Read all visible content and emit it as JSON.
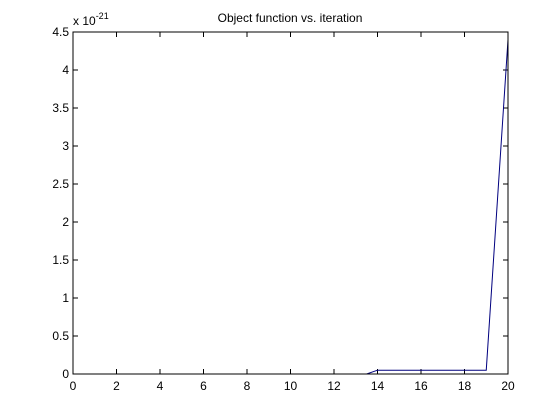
{
  "chart_data": {
    "type": "line",
    "title": "Object function vs. iteration",
    "xlabel": "",
    "ylabel": "",
    "y_exponent_base": "x 10",
    "y_exponent_power": "-21",
    "xlim": [
      0,
      20
    ],
    "ylim": [
      0,
      4.5
    ],
    "x_ticks": [
      0,
      2,
      4,
      6,
      8,
      10,
      12,
      14,
      16,
      18,
      20
    ],
    "x_tick_labels": [
      "0",
      "2",
      "4",
      "6",
      "8",
      "10",
      "12",
      "14",
      "16",
      "18",
      "20"
    ],
    "y_ticks": [
      0,
      0.5,
      1,
      1.5,
      2,
      2.5,
      3,
      3.5,
      4,
      4.5
    ],
    "y_tick_labels": [
      "0",
      "0.5",
      "1",
      "1.5",
      "2",
      "2.5",
      "3",
      "3.5",
      "4",
      "4.5"
    ],
    "grid": false,
    "series": [
      {
        "color": "#00007f",
        "x": [
          1.5,
          13.5,
          14,
          19,
          20
        ],
        "y": [
          0,
          0,
          0.05,
          0.05,
          4.4
        ]
      }
    ]
  }
}
